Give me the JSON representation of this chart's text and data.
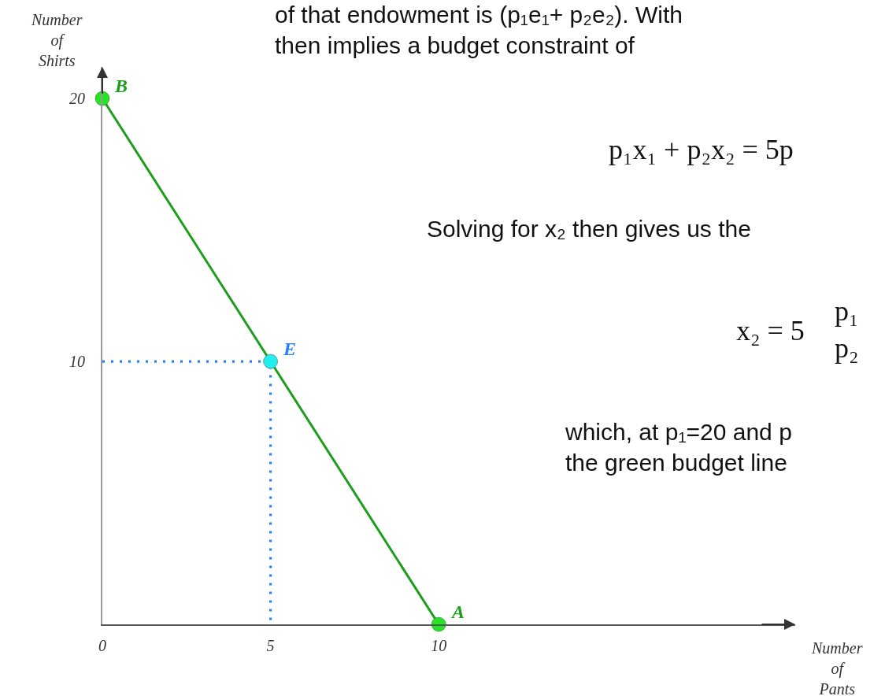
{
  "chart_data": {
    "type": "line",
    "xlabel": "Number\nof\nPants",
    "ylabel": "Number\nof\nShirts",
    "xlim": [
      0,
      20.6
    ],
    "ylim": [
      0,
      21.2
    ],
    "xticks": [
      0,
      5,
      10
    ],
    "yticks": [
      10,
      20
    ],
    "legend": false,
    "series": [
      {
        "x": [
          0,
          10
        ],
        "values": [
          20,
          0
        ],
        "color": "#1c9e1c",
        "marker": "none",
        "line_style": "solid"
      },
      {
        "x": [
          0,
          5,
          5
        ],
        "values": [
          10,
          10,
          0
        ],
        "color": "#2a7fff",
        "marker": "none",
        "line_style": "dotted"
      },
      {
        "type": "scatter",
        "x": [
          0,
          5,
          10
        ],
        "values": [
          20,
          10,
          0
        ],
        "colors": [
          "#22e622",
          "#22eeee",
          "#22e622"
        ],
        "marker": "circle"
      }
    ],
    "annotations": [
      {
        "text": "B",
        "x": 0,
        "y": 20
      },
      {
        "text": "E",
        "x": 5,
        "y": 10
      },
      {
        "text": "A",
        "x": 10,
        "y": 0
      },
      "of that endowment is (p₁e₁+ p₂e₂). With\nthen implies a budget constraint of",
      "p₁x₁ + p₂x₂ = 5p",
      "Solving for x₂ then gives us the",
      "x₂ = 5",
      "p₁\np₂",
      "which, at p₁=20 and p\nthe green budget line"
    ]
  }
}
